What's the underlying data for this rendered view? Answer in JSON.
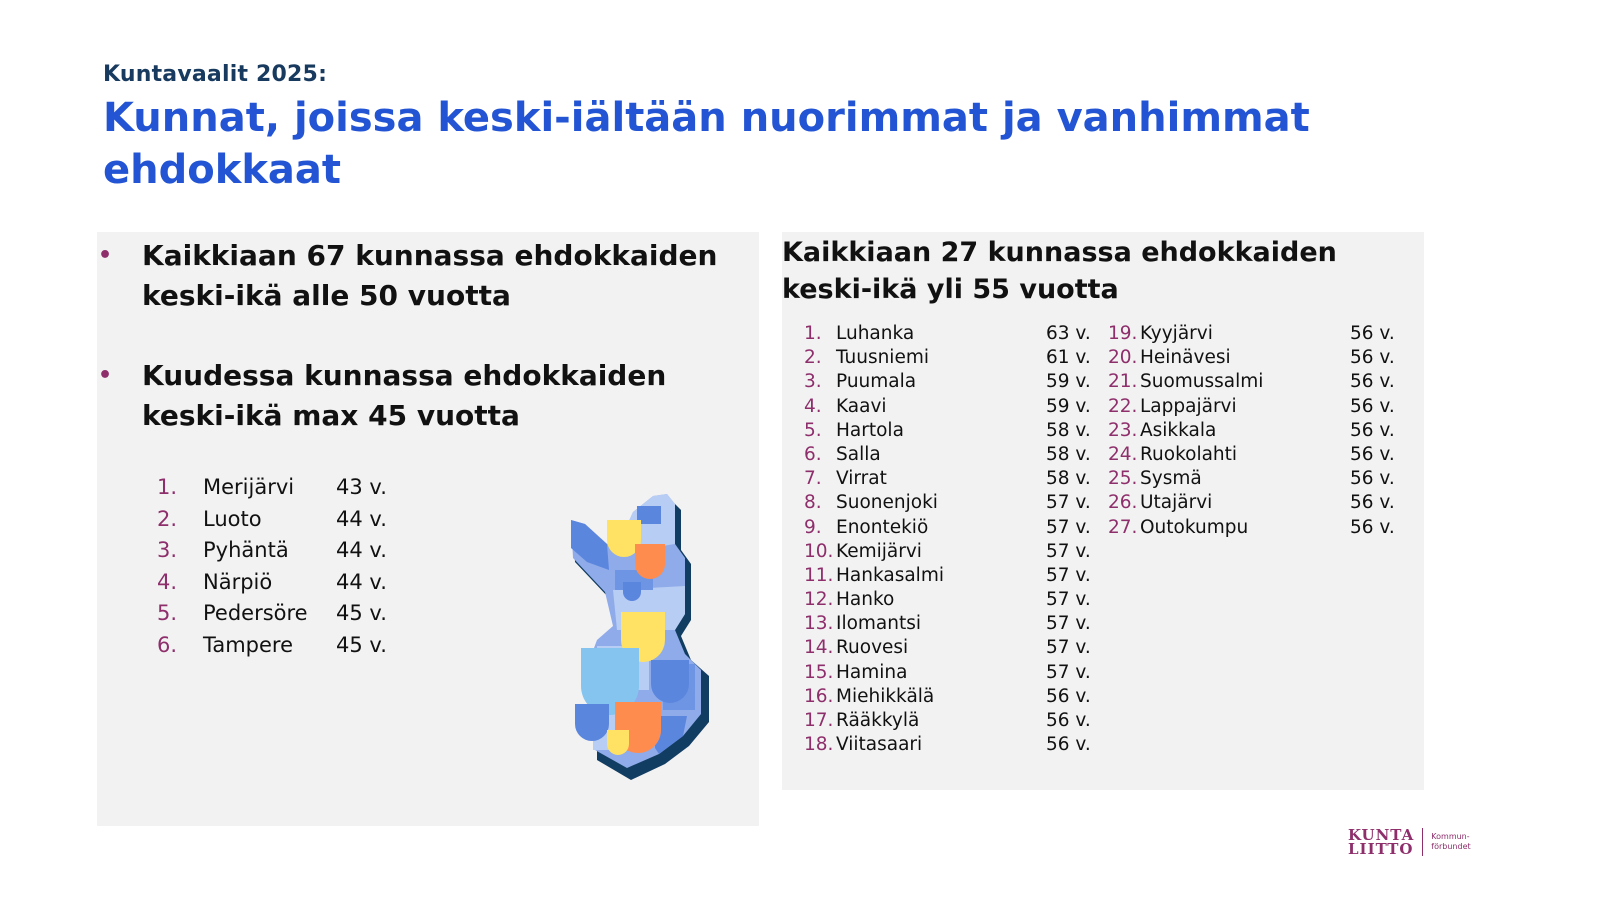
{
  "header": {
    "supertitle": "Kuntavaalit 2025:",
    "title": "Kunnat, joissa keski-iältään nuorimmat ja vanhimmat ehdokkaat"
  },
  "left": {
    "bullet_1": "Kaikkiaan 67 kunnassa ehdokkaiden keski-ikä alle 50 vuotta",
    "bullet_2": "Kuudessa kunnassa ehdokkaiden keski-ikä max 45 vuotta",
    "bullet_mark": "•",
    "youngest": [
      {
        "num": "1.",
        "name": "Merijärvi",
        "age": "43 v."
      },
      {
        "num": "2.",
        "name": "Luoto",
        "age": "44 v."
      },
      {
        "num": "3.",
        "name": "Pyhäntä",
        "age": "44 v."
      },
      {
        "num": "4.",
        "name": "Närpiö",
        "age": "44 v."
      },
      {
        "num": "5.",
        "name": "Pedersöre",
        "age": "45 v."
      },
      {
        "num": "6.",
        "name": "Tampere",
        "age": "45 v."
      }
    ]
  },
  "right": {
    "title": "Kaikkiaan 27 kunnassa ehdokkaiden keski-ikä yli 55 vuotta",
    "oldest_col1": [
      {
        "num": "1.",
        "name": "Luhanka",
        "age": "63 v."
      },
      {
        "num": "2.",
        "name": "Tuusniemi",
        "age": "61 v."
      },
      {
        "num": "3.",
        "name": "Puumala",
        "age": "59 v."
      },
      {
        "num": "4.",
        "name": "Kaavi",
        "age": "59 v."
      },
      {
        "num": "5.",
        "name": "Hartola",
        "age": "58 v."
      },
      {
        "num": "6.",
        "name": "Salla",
        "age": "58 v."
      },
      {
        "num": "7.",
        "name": "Virrat",
        "age": "58 v."
      },
      {
        "num": "8.",
        "name": "Suonenjoki",
        "age": "57 v."
      },
      {
        "num": "9.",
        "name": "Enontekiö",
        "age": "57 v."
      },
      {
        "num": "10.",
        "name": "Kemijärvi",
        "age": "57 v."
      },
      {
        "num": "11.",
        "name": "Hankasalmi",
        "age": "57 v."
      },
      {
        "num": "12.",
        "name": "Hanko",
        "age": "57 v."
      },
      {
        "num": "13.",
        "name": "Ilomantsi",
        "age": "57 v."
      },
      {
        "num": "14.",
        "name": "Ruovesi",
        "age": "57 v."
      },
      {
        "num": "15.",
        "name": "Hamina",
        "age": "57 v."
      },
      {
        "num": "16.",
        "name": "Miehikkälä",
        "age": "56 v."
      },
      {
        "num": "17.",
        "name": "Rääkkylä",
        "age": "56 v."
      },
      {
        "num": "18.",
        "name": "Viitasaari",
        "age": "56 v."
      }
    ],
    "oldest_col2": [
      {
        "num": "19.",
        "name": "Kyyjärvi",
        "age": "56 v."
      },
      {
        "num": "20.",
        "name": "Heinävesi",
        "age": "56 v."
      },
      {
        "num": "21.",
        "name": "Suomussalmi",
        "age": "56 v."
      },
      {
        "num": "22.",
        "name": "Lappajärvi",
        "age": "56 v."
      },
      {
        "num": "23.",
        "name": "Asikkala",
        "age": "56 v."
      },
      {
        "num": "24.",
        "name": "Ruokolahti",
        "age": "56 v."
      },
      {
        "num": "25.",
        "name": "Sysmä",
        "age": "56 v."
      },
      {
        "num": "26.",
        "name": "Utajärvi",
        "age": "56 v."
      },
      {
        "num": "27.",
        "name": "Outokumpu",
        "age": "56 v."
      }
    ]
  },
  "logo": {
    "main_line1": "KUNTA",
    "main_line2": "LIITTO",
    "sub_line1": "Kommun-",
    "sub_line2": "förbundet"
  },
  "colors": {
    "title_blue": "#2254d3",
    "supertitle_navy": "#173a5e",
    "accent_plum": "#8e2f6c",
    "panel_gray": "#f2f2f2"
  }
}
